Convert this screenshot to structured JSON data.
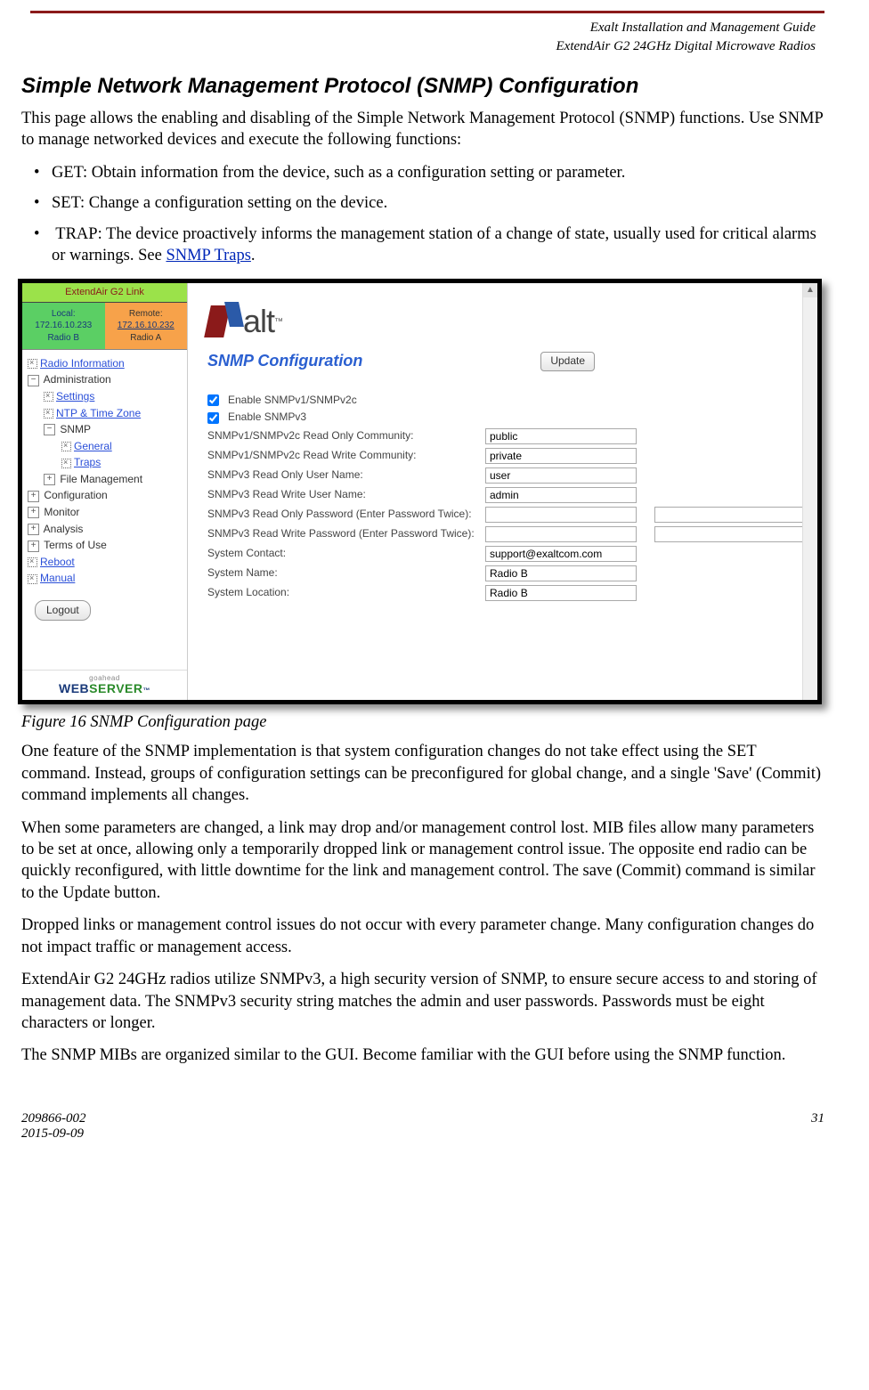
{
  "header": {
    "line1": "Exalt Installation and Management Guide",
    "line2": "ExtendAir G2 24GHz Digital Microwave Radios"
  },
  "section_title": "Simple Network Management Protocol (SNMP) Configuration",
  "intro": "This page allows the enabling and disabling of the Simple Network Management Protocol (SNMP) functions. Use SNMP to manage networked devices and execute the following functions:",
  "bullets": [
    "GET: Obtain information from the device, such as a configuration setting or parameter.",
    "SET: Change a configuration setting on the device.",
    "TRAP: The device proactively informs the management station of a change of state, usually used for critical alarms or warnings. See "
  ],
  "trap_link": "SNMP Traps",
  "fig_caption": "Figure 16   SNMP Configuration page",
  "paragraphs": [
    "One feature of the SNMP implementation is that system configuration changes do not take effect using the SET command. Instead, groups of configuration settings can be preconfigured for global change, and a single 'Save' (Commit) command implements all changes.",
    "When some parameters are changed, a link may drop and/or management control lost. MIB files allow many parameters to be set at once, allowing only a temporarily dropped link or management control issue. The opposite end radio can be quickly reconfigured, with little downtime for the link and management control. The save (Commit) command is similar to the Update button.",
    "Dropped links or management control issues do not occur with every parameter change. Many configuration changes do not impact traffic or management access.",
    "ExtendAir G2 24GHz radios utilize SNMPv3, a high security version of SNMP, to ensure secure access to and storing of management data. The SNMPv3 security string matches the admin and user passwords. Passwords must be eight characters or longer.",
    "The SNMP MIBs are organized similar to the GUI. Become familiar with the GUI before using the SNMP function."
  ],
  "footer": {
    "docnum": "209866-002",
    "date": "2015-09-09",
    "page": "31"
  },
  "screenshot": {
    "link_title": "ExtendAir G2 Link",
    "local": {
      "label": "Local:",
      "ip": "172.16.10.233",
      "radio": "Radio B"
    },
    "remote": {
      "label": "Remote:",
      "ip": "172.16.10.232",
      "radio": "Radio A"
    },
    "tree": {
      "radio_info": "Radio Information",
      "admin": "Administration",
      "settings": "Settings",
      "ntp": "NTP & Time Zone",
      "snmp": "SNMP",
      "general": "General",
      "traps": "Traps",
      "filemgmt": "File Management",
      "config": "Configuration",
      "monitor": "Monitor",
      "analysis": "Analysis",
      "terms": "Terms of Use",
      "reboot": "Reboot",
      "manual": "Manual"
    },
    "logout": "Logout",
    "webserver_go": "goahead",
    "webserver_web": "WEB",
    "webserver_srv": "SERVER",
    "logo_text": "alt",
    "cfg_title": "SNMP Configuration",
    "update_btn": "Update",
    "form": {
      "cb1": "Enable SNMPv1/SNMPv2c",
      "cb2": "Enable SNMPv3",
      "lbl_ro_comm": "SNMPv1/SNMPv2c Read Only Community:",
      "val_ro_comm": "public",
      "lbl_rw_comm": "SNMPv1/SNMPv2c Read Write Community:",
      "val_rw_comm": "private",
      "lbl_ro_user": "SNMPv3 Read Only User Name:",
      "val_ro_user": "user",
      "lbl_rw_user": "SNMPv3 Read Write User Name:",
      "val_rw_user": "admin",
      "lbl_ro_pw": "SNMPv3 Read Only Password (Enter Password Twice):",
      "lbl_rw_pw": "SNMPv3 Read Write Password (Enter Password Twice):",
      "lbl_contact": "System Contact:",
      "val_contact": "support@exaltcom.com",
      "lbl_name": "System Name:",
      "val_name": "Radio B",
      "lbl_loc": "System Location:",
      "val_loc": "Radio B"
    }
  }
}
